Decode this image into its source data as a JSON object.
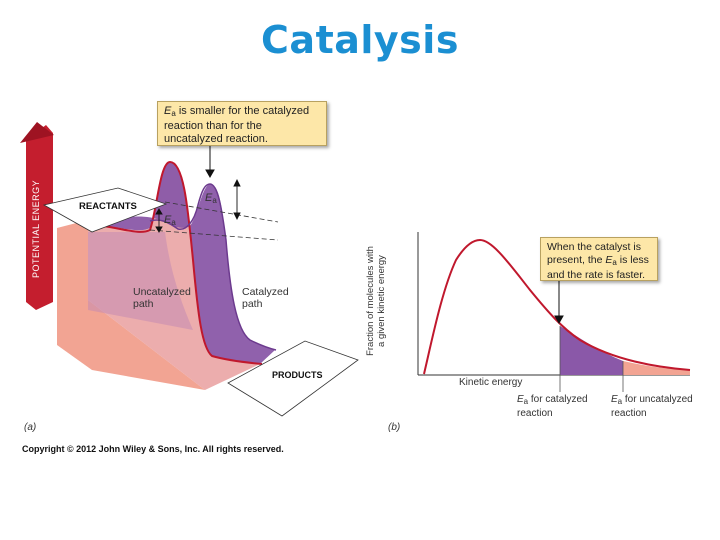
{
  "title": "Catalysis",
  "colors": {
    "title": "#1b8fd2",
    "uncatalyzed": "#f2a493",
    "catalyzed": "#8a58a8",
    "curve": "#c0182d",
    "arrow": "#c41e2e"
  },
  "panel_a": {
    "axis_label": "POTENTIAL ENERGY",
    "reactants_label": "REACTANTS",
    "products_label": "PRODUCTS",
    "uncatalyzed_label": [
      "Uncatalyzed",
      "path"
    ],
    "catalyzed_label": [
      "Catalyzed",
      "path"
    ],
    "ea_symbol": "E",
    "ea_subscript": "a",
    "callout": {
      "symbol": "E",
      "subscript": "a",
      "text": " is smaller for the catalyzed reaction than for the uncatalyzed reaction."
    },
    "panel_letter": "(a)"
  },
  "panel_b": {
    "ylabel_lines": [
      "Fraction of molecules with",
      "a given kinetic energy"
    ],
    "xlabel": "Kinetic energy",
    "callout": {
      "part1": "When the catalyst is present, the ",
      "symbol": "E",
      "subscript": "a",
      "part2": " is less and the rate is faster."
    },
    "ea_catalyzed": {
      "symbol": "E",
      "subscript": "a",
      "text": " for catalyzed",
      "line2": "reaction"
    },
    "ea_uncatalyzed": {
      "symbol": "E",
      "subscript": "a",
      "text": " for uncatalyzed",
      "line2": "reaction"
    },
    "panel_letter": "(b)"
  },
  "copyright": "Copyright © 2012 John Wiley & Sons, Inc. All rights reserved."
}
